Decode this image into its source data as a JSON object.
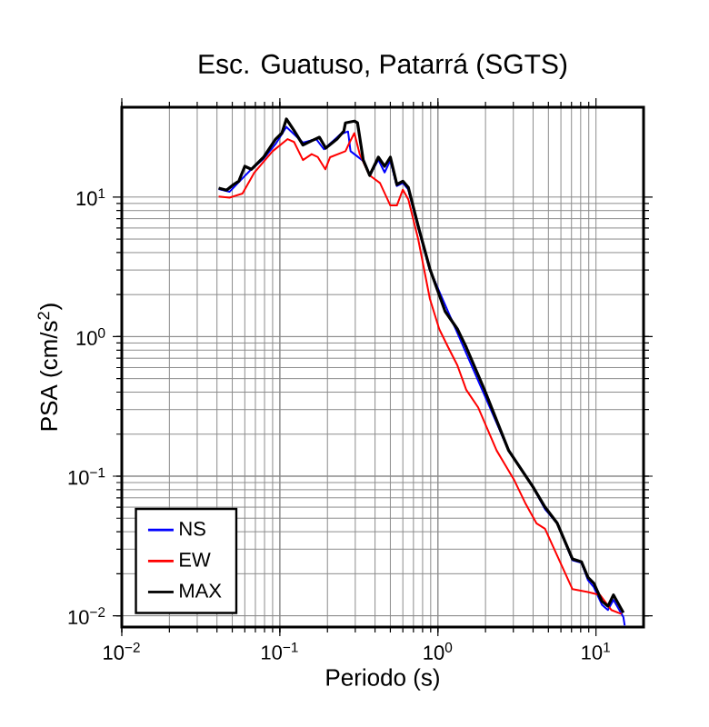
{
  "chart_data": {
    "type": "line",
    "title": "Esc. Guatuso, Patarrá (SGTS)",
    "xlabel": "Periodo (s)",
    "ylabel": "PSA (cm/s$^{2}$)",
    "log": "xy",
    "grid": true,
    "legend": "bottom left",
    "line_style": "solid",
    "xlim": [
      0.01,
      20
    ],
    "ylim": [
      0.0083,
      44
    ],
    "xticks": [
      {
        "value": 0.01,
        "label": "10$^{−2}$"
      },
      {
        "value": 0.1,
        "label": "10$^{−1}$"
      },
      {
        "value": 1,
        "label": "10$^{0}$"
      },
      {
        "value": 10,
        "label": "10$^{1}$"
      }
    ],
    "yticks": [
      {
        "value": 0.01,
        "label": "10$^{−2}$"
      },
      {
        "value": 0.1,
        "label": "10$^{−1}$"
      },
      {
        "value": 1,
        "label": "10$^{0}$"
      },
      {
        "value": 10,
        "label": "10$^{1}$"
      }
    ],
    "series": [
      {
        "name": "NS",
        "color": "#0000ff",
        "x": [
          0.041,
          0.048,
          0.055,
          0.066,
          0.079,
          0.094,
          0.11,
          0.14,
          0.17,
          0.19,
          0.24,
          0.27,
          0.28,
          0.34,
          0.37,
          0.42,
          0.46,
          0.5,
          0.55,
          0.6,
          0.65,
          0.75,
          0.89,
          1.11,
          1.51,
          1.97,
          2.8,
          3.99,
          4.76,
          5.69,
          7.1,
          8.1,
          8.9,
          9.7,
          10.9,
          11.9,
          12.9,
          14.9,
          15.2
        ],
        "values": [
          11.4,
          10.9,
          12.8,
          15.8,
          18.8,
          24,
          31.8,
          24.5,
          26,
          22,
          28,
          29.5,
          21.3,
          18,
          14.3,
          18.5,
          15,
          18.3,
          12,
          12.6,
          11.3,
          6.1,
          3.0,
          null,
          null,
          null,
          0.153,
          0.084,
          0.058,
          0.046,
          0.025,
          0.024,
          0.018,
          0.016,
          0.012,
          0.011,
          0.013,
          0.0098,
          0.0085
        ]
      },
      {
        "name": "EW",
        "color": "#ff0000",
        "x": [
          0.041,
          0.048,
          0.058,
          0.069,
          0.09,
          0.112,
          0.123,
          0.14,
          0.159,
          0.174,
          0.194,
          0.208,
          0.26,
          0.277,
          0.296,
          0.32,
          0.37,
          0.43,
          0.5,
          0.55,
          0.6,
          0.65,
          0.75,
          0.89,
          1.02,
          1.16,
          1.33,
          1.51,
          1.8,
          2.35,
          3.05,
          3.6,
          4.2,
          4.76,
          5.69,
          7.1,
          8.9,
          10.6,
          12.5,
          14.5
        ],
        "values": [
          10.1,
          9.9,
          10.6,
          15,
          21.3,
          26,
          24.8,
          18.4,
          20.3,
          19.3,
          15.8,
          19.3,
          21.3,
          24.8,
          28.7,
          20.3,
          14.3,
          12.6,
          8.7,
          8.7,
          11.3,
          9.6,
          5.0,
          1.86,
          1.13,
          0.84,
          0.62,
          0.416,
          0.31,
          0.153,
          0.093,
          0.063,
          0.046,
          0.042,
          0.0269,
          0.0155,
          0.0148,
          0.0141,
          0.011,
          0.0103
        ]
      },
      {
        "name": "MAX",
        "color": "#000000",
        "x": [
          0.041,
          0.046,
          0.051,
          0.055,
          0.06,
          0.066,
          0.079,
          0.094,
          0.103,
          0.11,
          0.123,
          0.14,
          0.159,
          0.178,
          0.195,
          0.23,
          0.254,
          0.26,
          0.296,
          0.31,
          0.337,
          0.37,
          0.42,
          0.46,
          0.5,
          0.55,
          0.6,
          0.65,
          0.75,
          0.89,
          1.11,
          1.33,
          1.51,
          1.97,
          2.8,
          3.99,
          4.76,
          5.69,
          7.1,
          8.1,
          8.9,
          9.7,
          10.9,
          11.9,
          12.9,
          14.9
        ],
        "values": [
          11.6,
          11.2,
          12.3,
          13,
          16.6,
          15.8,
          19.3,
          26,
          28.7,
          36.2,
          30,
          23.6,
          25.3,
          26.8,
          22.4,
          26,
          29.7,
          34,
          35,
          34,
          18.4,
          14.3,
          19.3,
          16.6,
          19.3,
          12.3,
          13,
          11.7,
          6.2,
          3.05,
          1.52,
          1.13,
          0.84,
          0.416,
          0.153,
          0.084,
          0.06,
          0.046,
          0.0255,
          0.0243,
          0.0188,
          0.0171,
          0.0127,
          0.0117,
          0.0141,
          0.0105
        ]
      }
    ]
  }
}
